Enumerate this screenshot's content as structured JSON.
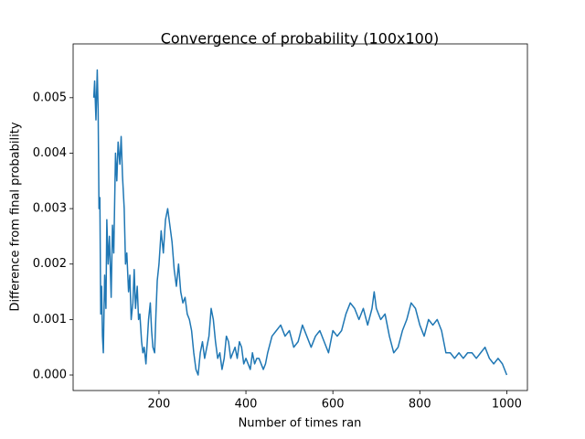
{
  "chart_data": {
    "type": "line",
    "title": "Convergence of probability (100x100)",
    "x_label": "Number of times ran",
    "y_label": "Difference from final probability",
    "x": [
      50,
      52,
      55,
      58,
      60,
      62,
      64,
      66,
      68,
      70,
      72,
      75,
      78,
      80,
      83,
      86,
      90,
      93,
      96,
      100,
      103,
      106,
      110,
      113,
      116,
      120,
      123,
      126,
      130,
      133,
      136,
      140,
      143,
      146,
      150,
      153,
      156,
      160,
      163,
      166,
      170,
      173,
      176,
      180,
      183,
      186,
      190,
      193,
      196,
      200,
      205,
      210,
      215,
      220,
      225,
      230,
      235,
      240,
      245,
      250,
      255,
      260,
      265,
      270,
      275,
      280,
      285,
      290,
      295,
      300,
      305,
      310,
      315,
      320,
      325,
      330,
      335,
      340,
      345,
      350,
      355,
      360,
      365,
      370,
      375,
      380,
      385,
      390,
      395,
      400,
      410,
      415,
      420,
      425,
      430,
      440,
      445,
      450,
      460,
      470,
      480,
      490,
      500,
      510,
      520,
      530,
      540,
      550,
      560,
      570,
      580,
      590,
      600,
      610,
      620,
      630,
      640,
      650,
      660,
      670,
      680,
      690,
      695,
      700,
      710,
      720,
      730,
      740,
      750,
      760,
      770,
      780,
      790,
      800,
      810,
      820,
      830,
      840,
      850,
      860,
      870,
      880,
      890,
      900,
      910,
      920,
      930,
      940,
      950,
      960,
      970,
      980,
      990,
      1000
    ],
    "series": [
      {
        "name": "Difference",
        "color": "#1f77b4",
        "values": [
          0.005,
          0.0053,
          0.0046,
          0.0055,
          0.0048,
          0.003,
          0.0032,
          0.0011,
          0.0016,
          0.0007,
          0.0004,
          0.0018,
          0.0012,
          0.0028,
          0.002,
          0.0025,
          0.0014,
          0.0027,
          0.0022,
          0.004,
          0.0035,
          0.0042,
          0.0038,
          0.0043,
          0.0036,
          0.003,
          0.002,
          0.0022,
          0.0015,
          0.0018,
          0.001,
          0.0013,
          0.0019,
          0.0012,
          0.0016,
          0.001,
          0.0011,
          0.0006,
          0.0004,
          0.0005,
          0.0002,
          0.0006,
          0.001,
          0.0013,
          0.0008,
          0.0005,
          0.0004,
          0.0011,
          0.0017,
          0.002,
          0.0026,
          0.0022,
          0.0028,
          0.003,
          0.0027,
          0.0024,
          0.0019,
          0.0016,
          0.002,
          0.0015,
          0.0013,
          0.0014,
          0.0011,
          0.001,
          0.0008,
          0.0004,
          0.0001,
          0.0,
          0.0004,
          0.0006,
          0.0003,
          0.0005,
          0.0007,
          0.0012,
          0.001,
          0.0006,
          0.0003,
          0.0004,
          0.0001,
          0.0003,
          0.0007,
          0.0006,
          0.0003,
          0.0004,
          0.0005,
          0.0003,
          0.0006,
          0.0005,
          0.0002,
          0.0003,
          0.0001,
          0.0004,
          0.0002,
          0.0003,
          0.0003,
          0.0001,
          0.0002,
          0.0004,
          0.0007,
          0.0008,
          0.0009,
          0.0007,
          0.0008,
          0.0005,
          0.0006,
          0.0009,
          0.0007,
          0.0005,
          0.0007,
          0.0008,
          0.0006,
          0.0004,
          0.0008,
          0.0007,
          0.0008,
          0.0011,
          0.0013,
          0.0012,
          0.001,
          0.0012,
          0.0009,
          0.0012,
          0.0015,
          0.0012,
          0.001,
          0.0011,
          0.0007,
          0.0004,
          0.0005,
          0.0008,
          0.001,
          0.0013,
          0.0012,
          0.0009,
          0.0007,
          0.001,
          0.0009,
          0.001,
          0.0008,
          0.0004,
          0.0004,
          0.0003,
          0.0004,
          0.0003,
          0.0004,
          0.0004,
          0.0003,
          0.0004,
          0.0005,
          0.0003,
          0.0002,
          0.0003,
          0.0002,
          0.0
        ]
      }
    ],
    "xlim": [
      2.5,
      1047.5
    ],
    "ylim": [
      -0.00028,
      0.00597
    ],
    "xticks": [
      200,
      400,
      600,
      800,
      1000
    ],
    "yticks": [
      {
        "value": 0,
        "label": "0.000"
      },
      0.001,
      0.002,
      0.003,
      0.004,
      0.005
    ],
    "grid": false
  }
}
